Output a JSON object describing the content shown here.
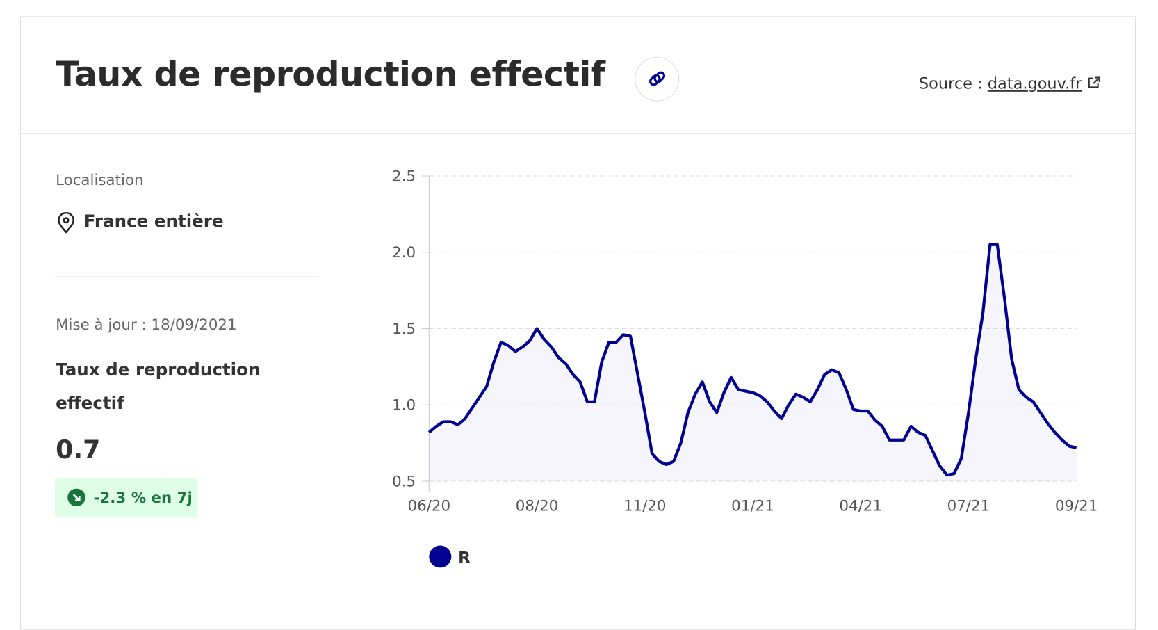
{
  "header": {
    "title": "Taux de reproduction effectif",
    "source_label": "Source :",
    "source_link": "data.gouv.fr"
  },
  "sidebar": {
    "location_label": "Localisation",
    "location": "France entière",
    "updated": "Mise à jour : 18/09/2021",
    "indicator": "Taux de reproduction effectif",
    "value": "0.7",
    "change": "-2.3 % en 7j"
  },
  "chart_data": {
    "type": "line",
    "categories": [
      "06/20",
      null,
      null,
      null,
      null,
      null,
      null,
      null,
      null,
      null,
      null,
      null,
      null,
      null,
      null,
      "08/20",
      null,
      null,
      null,
      null,
      null,
      null,
      null,
      null,
      null,
      null,
      null,
      null,
      null,
      null,
      "11/20",
      null,
      null,
      null,
      null,
      null,
      null,
      null,
      null,
      null,
      null,
      null,
      null,
      null,
      null,
      "01/21",
      null,
      null,
      null,
      null,
      null,
      null,
      null,
      null,
      null,
      null,
      null,
      null,
      null,
      null,
      "04/21",
      null,
      null,
      null,
      null,
      null,
      null,
      null,
      null,
      null,
      null,
      null,
      null,
      null,
      null,
      "07/21",
      null,
      null,
      null,
      null,
      null,
      null,
      null,
      null,
      null,
      null,
      null,
      null,
      null,
      null,
      "09/21"
    ],
    "series": [
      {
        "name": "R",
        "color": "#000091",
        "values": [
          0.82,
          0.86,
          0.89,
          0.89,
          0.87,
          0.91,
          0.98,
          1.05,
          1.12,
          1.28,
          1.41,
          1.39,
          1.35,
          1.38,
          1.42,
          1.5,
          1.43,
          1.38,
          1.31,
          1.27,
          1.2,
          1.15,
          1.02,
          1.02,
          1.28,
          1.41,
          1.41,
          1.46,
          1.45,
          1.2,
          0.95,
          0.68,
          0.63,
          0.61,
          0.63,
          0.75,
          0.95,
          1.07,
          1.15,
          1.02,
          0.95,
          1.08,
          1.18,
          1.1,
          1.09,
          1.08,
          1.06,
          1.02,
          0.96,
          0.91,
          1.0,
          1.07,
          1.05,
          1.02,
          1.1,
          1.2,
          1.23,
          1.21,
          1.1,
          0.97,
          0.96,
          0.96,
          0.9,
          0.86,
          0.77,
          0.77,
          0.77,
          0.86,
          0.82,
          0.8,
          0.7,
          0.6,
          0.54,
          0.55,
          0.65,
          0.95,
          1.3,
          1.6,
          2.05,
          2.05,
          1.7,
          1.3,
          1.1,
          1.05,
          1.02,
          0.95,
          0.88,
          0.82,
          0.77,
          0.73,
          0.72
        ]
      }
    ],
    "ylim": [
      0.5,
      2.5
    ],
    "yticks": [
      0.5,
      {
        "value": 1,
        "label": "1.0"
      },
      1.5,
      {
        "value": 2,
        "label": "2.0"
      },
      2.5
    ],
    "grid": true
  }
}
